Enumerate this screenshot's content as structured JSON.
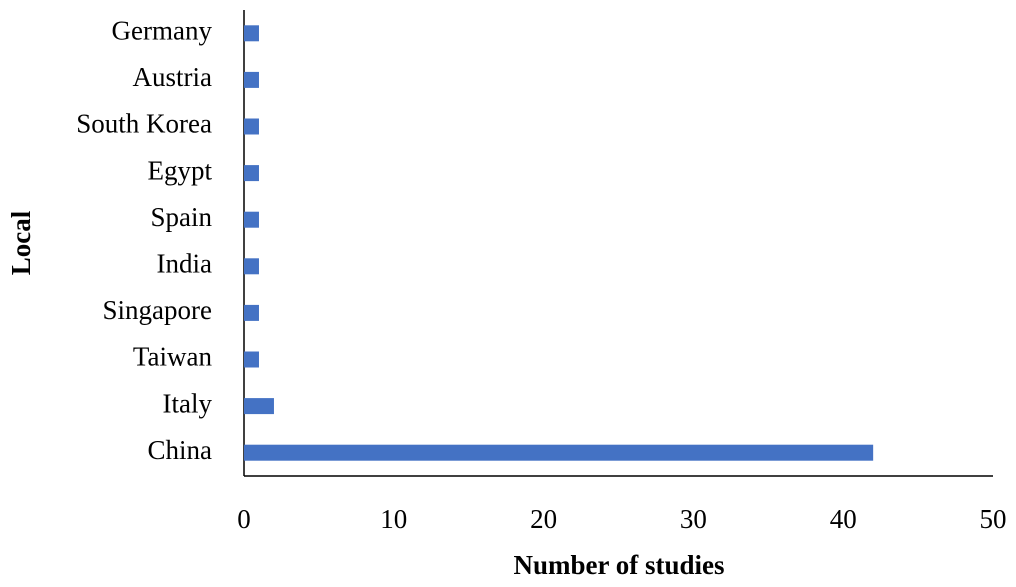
{
  "chart_data": {
    "type": "barh",
    "categories": [
      "Germany",
      "Austria",
      "South Korea",
      "Egypt",
      "Spain",
      "India",
      "Singapore",
      "Taiwan",
      "Italy",
      "China"
    ],
    "values": [
      1,
      1,
      1,
      1,
      1,
      1,
      1,
      1,
      2,
      42
    ],
    "color": "#4472c4",
    "xlabel": "Number of studies",
    "ylabel": "Local",
    "xlim": [
      0,
      50
    ],
    "xticks": [
      0,
      10,
      20,
      30,
      40,
      50
    ],
    "grid": false
  }
}
